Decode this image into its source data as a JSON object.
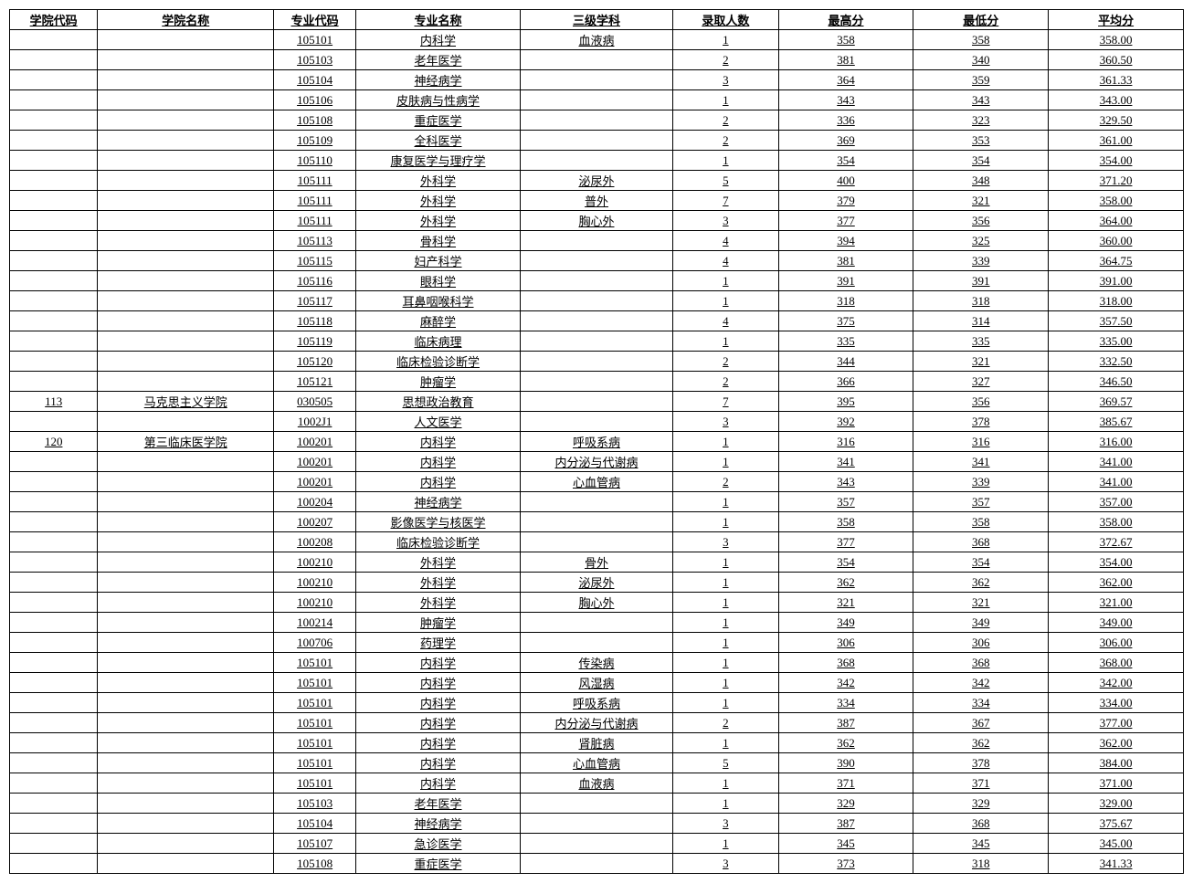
{
  "table": {
    "columns": [
      "学院代码",
      "学院名称",
      "专业代码",
      "专业名称",
      "三级学科",
      "录取人数",
      "最高分",
      "最低分",
      "平均分"
    ],
    "rows": [
      [
        "",
        "",
        "105101",
        "内科学",
        "血液病",
        "1",
        "358",
        "358",
        "358.00"
      ],
      [
        "",
        "",
        "105103",
        "老年医学",
        "",
        "2",
        "381",
        "340",
        "360.50"
      ],
      [
        "",
        "",
        "105104",
        "神经病学",
        "",
        "3",
        "364",
        "359",
        "361.33"
      ],
      [
        "",
        "",
        "105106",
        "皮肤病与性病学",
        "",
        "1",
        "343",
        "343",
        "343.00"
      ],
      [
        "",
        "",
        "105108",
        "重症医学",
        "",
        "2",
        "336",
        "323",
        "329.50"
      ],
      [
        "",
        "",
        "105109",
        "全科医学",
        "",
        "2",
        "369",
        "353",
        "361.00"
      ],
      [
        "",
        "",
        "105110",
        "康复医学与理疗学",
        "",
        "1",
        "354",
        "354",
        "354.00"
      ],
      [
        "",
        "",
        "105111",
        "外科学",
        "泌尿外",
        "5",
        "400",
        "348",
        "371.20"
      ],
      [
        "",
        "",
        "105111",
        "外科学",
        "普外",
        "7",
        "379",
        "321",
        "358.00"
      ],
      [
        "",
        "",
        "105111",
        "外科学",
        "胸心外",
        "3",
        "377",
        "356",
        "364.00"
      ],
      [
        "",
        "",
        "105113",
        "骨科学",
        "",
        "4",
        "394",
        "325",
        "360.00"
      ],
      [
        "",
        "",
        "105115",
        "妇产科学",
        "",
        "4",
        "381",
        "339",
        "364.75"
      ],
      [
        "",
        "",
        "105116",
        "眼科学",
        "",
        "1",
        "391",
        "391",
        "391.00"
      ],
      [
        "",
        "",
        "105117",
        "耳鼻咽喉科学",
        "",
        "1",
        "318",
        "318",
        "318.00"
      ],
      [
        "",
        "",
        "105118",
        "麻醉学",
        "",
        "4",
        "375",
        "314",
        "357.50"
      ],
      [
        "",
        "",
        "105119",
        "临床病理",
        "",
        "1",
        "335",
        "335",
        "335.00"
      ],
      [
        "",
        "",
        "105120",
        "临床检验诊断学",
        "",
        "2",
        "344",
        "321",
        "332.50"
      ],
      [
        "",
        "",
        "105121",
        "肿瘤学",
        "",
        "2",
        "366",
        "327",
        "346.50"
      ],
      [
        "113",
        "马克思主义学院",
        "030505",
        "思想政治教育",
        "",
        "7",
        "395",
        "356",
        "369.57"
      ],
      [
        "",
        "",
        "1002J1",
        "人文医学",
        "",
        "3",
        "392",
        "378",
        "385.67"
      ],
      [
        "120",
        "第三临床医学院",
        "100201",
        "内科学",
        "呼吸系病",
        "1",
        "316",
        "316",
        "316.00"
      ],
      [
        "",
        "",
        "100201",
        "内科学",
        "内分泌与代谢病",
        "1",
        "341",
        "341",
        "341.00"
      ],
      [
        "",
        "",
        "100201",
        "内科学",
        "心血管病",
        "2",
        "343",
        "339",
        "341.00"
      ],
      [
        "",
        "",
        "100204",
        "神经病学",
        "",
        "1",
        "357",
        "357",
        "357.00"
      ],
      [
        "",
        "",
        "100207",
        "影像医学与核医学",
        "",
        "1",
        "358",
        "358",
        "358.00"
      ],
      [
        "",
        "",
        "100208",
        "临床检验诊断学",
        "",
        "3",
        "377",
        "368",
        "372.67"
      ],
      [
        "",
        "",
        "100210",
        "外科学",
        "骨外",
        "1",
        "354",
        "354",
        "354.00"
      ],
      [
        "",
        "",
        "100210",
        "外科学",
        "泌尿外",
        "1",
        "362",
        "362",
        "362.00"
      ],
      [
        "",
        "",
        "100210",
        "外科学",
        "胸心外",
        "1",
        "321",
        "321",
        "321.00"
      ],
      [
        "",
        "",
        "100214",
        "肿瘤学",
        "",
        "1",
        "349",
        "349",
        "349.00"
      ],
      [
        "",
        "",
        "100706",
        "药理学",
        "",
        "1",
        "306",
        "306",
        "306.00"
      ],
      [
        "",
        "",
        "105101",
        "内科学",
        "传染病",
        "1",
        "368",
        "368",
        "368.00"
      ],
      [
        "",
        "",
        "105101",
        "内科学",
        "风湿病",
        "1",
        "342",
        "342",
        "342.00"
      ],
      [
        "",
        "",
        "105101",
        "内科学",
        "呼吸系病",
        "1",
        "334",
        "334",
        "334.00"
      ],
      [
        "",
        "",
        "105101",
        "内科学",
        "内分泌与代谢病",
        "2",
        "387",
        "367",
        "377.00"
      ],
      [
        "",
        "",
        "105101",
        "内科学",
        "肾脏病",
        "1",
        "362",
        "362",
        "362.00"
      ],
      [
        "",
        "",
        "105101",
        "内科学",
        "心血管病",
        "5",
        "390",
        "378",
        "384.00"
      ],
      [
        "",
        "",
        "105101",
        "内科学",
        "血液病",
        "1",
        "371",
        "371",
        "371.00"
      ],
      [
        "",
        "",
        "105103",
        "老年医学",
        "",
        "1",
        "329",
        "329",
        "329.00"
      ],
      [
        "",
        "",
        "105104",
        "神经病学",
        "",
        "3",
        "387",
        "368",
        "375.67"
      ],
      [
        "",
        "",
        "105107",
        "急诊医学",
        "",
        "1",
        "345",
        "345",
        "345.00"
      ],
      [
        "",
        "",
        "105108",
        "重症医学",
        "",
        "3",
        "373",
        "318",
        "341.33"
      ]
    ],
    "underline_all_nonempty": true,
    "font_size_pt": 10,
    "border_color": "#000000",
    "background_color": "#ffffff",
    "text_color": "#000000"
  }
}
